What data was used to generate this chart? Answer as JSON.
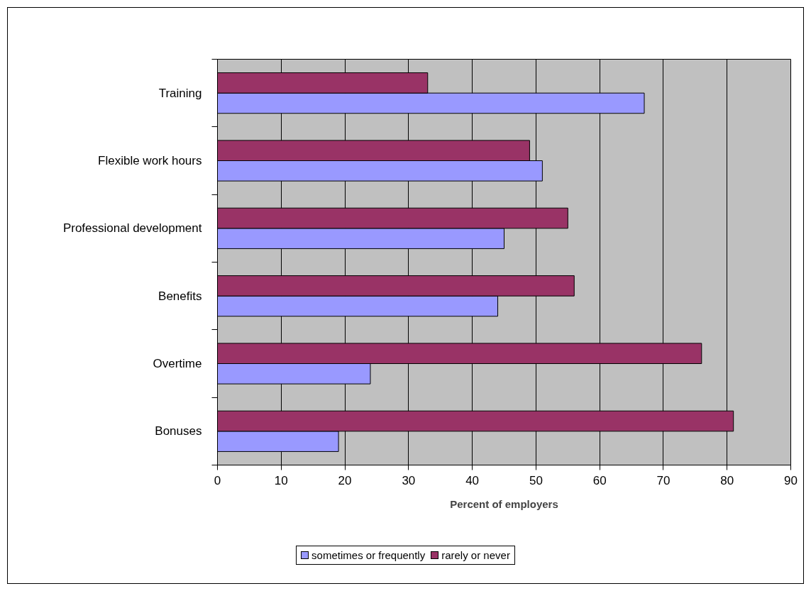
{
  "chart_data": {
    "type": "bar",
    "orientation": "horizontal",
    "xlabel": "Percent of employers",
    "categories": [
      "Training",
      "Flexible work hours",
      "Professional development",
      "Benefits",
      "Overtime",
      "Bonuses"
    ],
    "series": [
      {
        "name": "sometimes or frequently",
        "color": "#9999ff",
        "values": [
          67,
          51,
          45,
          44,
          24,
          19
        ]
      },
      {
        "name": "rarely or never",
        "color": "#993366",
        "values": [
          33,
          49,
          55,
          56,
          76,
          81
        ]
      }
    ],
    "xlim": [
      0,
      90
    ],
    "xticks": [
      0,
      10,
      20,
      30,
      40,
      50,
      60,
      70,
      80,
      90
    ],
    "grid": "x",
    "legend": "bottom"
  }
}
